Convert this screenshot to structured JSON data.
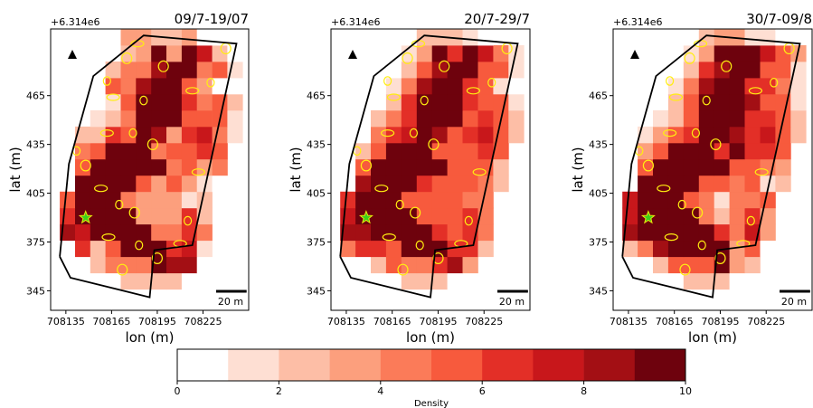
{
  "chart_data": [
    {
      "type": "heatmap",
      "title": "09/7-19/07",
      "xlabel": "lon (m)",
      "ylabel": "lat (m)",
      "offset_label": "+6.314e6",
      "xlim": [
        708125,
        708255
      ],
      "ylim": [
        333,
        506
      ],
      "xticks": [
        "708135",
        "708165",
        "708195",
        "708225"
      ],
      "xtick_values": [
        708135,
        708165,
        708195,
        708225
      ],
      "yticks": [
        "345",
        "375",
        "405",
        "435",
        "465"
      ],
      "ytick_values": [
        345,
        375,
        405,
        435,
        465
      ],
      "grid": false,
      "cell_size_m": 10,
      "scale_bar_label": "20 m",
      "marker": {
        "type": "star",
        "x": 708148,
        "y": 390
      },
      "boundary": [
        [
          708131,
          366
        ],
        [
          708138,
          353
        ],
        [
          708190,
          341
        ],
        [
          708193,
          370
        ],
        [
          708218,
          373
        ],
        [
          708247,
          497
        ],
        [
          708186,
          502
        ],
        [
          708153,
          477
        ],
        [
          708137,
          423
        ],
        [
          708131,
          366
        ]
      ],
      "contours": [
        [
          708142,
          431
        ],
        [
          708148,
          422
        ],
        [
          708162,
          442
        ],
        [
          708179,
          442
        ],
        [
          708192,
          435
        ],
        [
          708158,
          408
        ],
        [
          708170,
          398
        ],
        [
          708180,
          393
        ],
        [
          708163,
          378
        ],
        [
          708183,
          373
        ],
        [
          708195,
          365
        ],
        [
          708210,
          374
        ],
        [
          708215,
          388
        ],
        [
          708172,
          358
        ],
        [
          708166,
          464
        ],
        [
          708162,
          474
        ],
        [
          708175,
          488
        ],
        [
          708182,
          497
        ],
        [
          708186,
          462
        ],
        [
          708199,
          483
        ],
        [
          708218,
          468
        ],
        [
          708230,
          473
        ],
        [
          708240,
          494
        ],
        [
          708222,
          418
        ]
      ],
      "grid_cells": {
        "x0": 708131,
        "y0": 346,
        "rows": [
          [
            null,
            null,
            null,
            null,
            3,
            3,
            3,
            3,
            1,
            null,
            null,
            null
          ],
          [
            null,
            null,
            3,
            5,
            5,
            5,
            10,
            9,
            9,
            1,
            null,
            null
          ],
          [
            1,
            7,
            3,
            6,
            10,
            10,
            10,
            7,
            8,
            2,
            null,
            null
          ],
          [
            9,
            8,
            10,
            10,
            10,
            10,
            5,
            5,
            7,
            5,
            null,
            null
          ],
          [
            7,
            10,
            10,
            10,
            10,
            4,
            4,
            4,
            7,
            3,
            null,
            null
          ],
          [
            6,
            10,
            10,
            10,
            5,
            4,
            4,
            4,
            2,
            3,
            null,
            null
          ],
          [
            null,
            10,
            10,
            10,
            10,
            6,
            4,
            6,
            4,
            2,
            1,
            null
          ],
          [
            null,
            6,
            10,
            10,
            10,
            10,
            10,
            5,
            6,
            4,
            5,
            null
          ],
          [
            null,
            5,
            6,
            10,
            10,
            10,
            5,
            6,
            6,
            7,
            6,
            null
          ],
          [
            null,
            3,
            3,
            7,
            6,
            10,
            9,
            4,
            7,
            8,
            5,
            2
          ],
          [
            null,
            null,
            2,
            3,
            5,
            10,
            10,
            10,
            6,
            6,
            6,
            2
          ],
          [
            null,
            null,
            null,
            2,
            6,
            10,
            10,
            10,
            7,
            5,
            6,
            3
          ],
          [
            null,
            null,
            null,
            6,
            5,
            9,
            10,
            10,
            6,
            4,
            1,
            1
          ],
          [
            null,
            null,
            null,
            3,
            5,
            5,
            9,
            10,
            10,
            5,
            6,
            2
          ],
          [
            null,
            null,
            null,
            null,
            3,
            4,
            10,
            4,
            10,
            8,
            3,
            1
          ],
          [
            null,
            null,
            null,
            null,
            4,
            4,
            3,
            3,
            4,
            1,
            1,
            null
          ]
        ]
      }
    },
    {
      "type": "heatmap",
      "title": "20/7-29/7",
      "xlabel": "lon (m)",
      "ylabel": "lat (m)",
      "offset_label": "+6.314e6",
      "xlim": [
        708125,
        708255
      ],
      "ylim": [
        333,
        506
      ],
      "xticks": [
        "708135",
        "708165",
        "708195",
        "708225"
      ],
      "xtick_values": [
        708135,
        708165,
        708195,
        708225
      ],
      "yticks": [
        "345",
        "375",
        "405",
        "435",
        "465"
      ],
      "ytick_values": [
        345,
        375,
        405,
        435,
        465
      ],
      "grid": false,
      "cell_size_m": 10,
      "scale_bar_label": "20 m",
      "marker": {
        "type": "star",
        "x": 708148,
        "y": 390
      },
      "boundary": [
        [
          708131,
          366
        ],
        [
          708138,
          353
        ],
        [
          708190,
          341
        ],
        [
          708193,
          370
        ],
        [
          708218,
          373
        ],
        [
          708247,
          497
        ],
        [
          708186,
          502
        ],
        [
          708153,
          477
        ],
        [
          708137,
          423
        ],
        [
          708131,
          366
        ]
      ],
      "contours": [
        [
          708142,
          431
        ],
        [
          708148,
          422
        ],
        [
          708162,
          442
        ],
        [
          708179,
          442
        ],
        [
          708192,
          435
        ],
        [
          708158,
          408
        ],
        [
          708170,
          398
        ],
        [
          708180,
          393
        ],
        [
          708163,
          378
        ],
        [
          708183,
          373
        ],
        [
          708195,
          365
        ],
        [
          708210,
          374
        ],
        [
          708215,
          388
        ],
        [
          708172,
          358
        ],
        [
          708166,
          464
        ],
        [
          708162,
          474
        ],
        [
          708175,
          488
        ],
        [
          708182,
          497
        ],
        [
          708186,
          462
        ],
        [
          708199,
          483
        ],
        [
          708218,
          468
        ],
        [
          708230,
          473
        ],
        [
          708240,
          494
        ],
        [
          708222,
          418
        ]
      ],
      "grid_cells": {
        "x0": 708131,
        "y0": 346,
        "rows": [
          [
            null,
            null,
            null,
            null,
            3,
            3,
            3,
            1,
            null,
            null,
            null,
            null
          ],
          [
            null,
            null,
            3,
            6,
            5,
            5,
            7,
            9,
            4,
            null,
            null,
            null
          ],
          [
            5,
            7,
            7,
            6,
            10,
            10,
            10,
            7,
            7,
            3,
            null,
            null
          ],
          [
            9,
            9,
            10,
            10,
            10,
            10,
            7,
            6,
            7,
            5,
            null,
            null
          ],
          [
            8,
            10,
            10,
            10,
            10,
            6,
            6,
            6,
            7,
            5,
            null,
            null
          ],
          [
            7,
            10,
            10,
            10,
            6,
            6,
            6,
            6,
            5,
            5,
            null,
            null
          ],
          [
            null,
            9,
            10,
            10,
            10,
            7,
            6,
            6,
            6,
            5,
            3,
            null
          ],
          [
            null,
            6,
            10,
            10,
            10,
            10,
            10,
            6,
            6,
            6,
            3,
            null
          ],
          [
            null,
            3,
            6,
            10,
            10,
            10,
            6,
            6,
            6,
            7,
            6,
            null
          ],
          [
            null,
            1,
            5,
            7,
            8,
            10,
            9,
            6,
            7,
            8,
            6,
            3
          ],
          [
            null,
            null,
            3,
            5,
            7,
            10,
            10,
            10,
            6,
            7,
            6,
            3
          ],
          [
            null,
            null,
            null,
            3,
            7,
            10,
            10,
            10,
            7,
            6,
            6,
            2
          ],
          [
            null,
            null,
            null,
            2,
            5,
            9,
            10,
            10,
            7,
            6,
            2,
            1
          ],
          [
            null,
            null,
            null,
            1,
            3,
            6,
            9,
            10,
            10,
            6,
            6,
            2
          ],
          [
            null,
            null,
            null,
            null,
            2,
            4,
            10,
            7,
            10,
            8,
            5,
            2
          ],
          [
            null,
            null,
            null,
            null,
            1,
            3,
            3,
            3,
            2,
            1,
            null,
            null
          ]
        ]
      }
    },
    {
      "type": "heatmap",
      "title": "30/7-09/8",
      "xlabel": "lon (m)",
      "ylabel": "lat (m)",
      "offset_label": "+6.314e6",
      "xlim": [
        708125,
        708255
      ],
      "ylim": [
        333,
        506
      ],
      "xticks": [
        "708135",
        "708165",
        "708195",
        "708225"
      ],
      "xtick_values": [
        708135,
        708165,
        708195,
        708225
      ],
      "yticks": [
        "345",
        "375",
        "405",
        "435",
        "465"
      ],
      "ytick_values": [
        345,
        375,
        405,
        435,
        465
      ],
      "grid": false,
      "cell_size_m": 10,
      "scale_bar_label": "20 m",
      "marker": {
        "type": "star",
        "x": 708148,
        "y": 390
      },
      "boundary": [
        [
          708131,
          366
        ],
        [
          708138,
          353
        ],
        [
          708190,
          341
        ],
        [
          708193,
          370
        ],
        [
          708218,
          373
        ],
        [
          708247,
          497
        ],
        [
          708186,
          502
        ],
        [
          708153,
          477
        ],
        [
          708137,
          423
        ],
        [
          708131,
          366
        ]
      ],
      "contours": [
        [
          708142,
          431
        ],
        [
          708148,
          422
        ],
        [
          708162,
          442
        ],
        [
          708179,
          442
        ],
        [
          708192,
          435
        ],
        [
          708158,
          408
        ],
        [
          708170,
          398
        ],
        [
          708180,
          393
        ],
        [
          708163,
          378
        ],
        [
          708183,
          373
        ],
        [
          708195,
          365
        ],
        [
          708210,
          374
        ],
        [
          708215,
          388
        ],
        [
          708172,
          358
        ],
        [
          708166,
          464
        ],
        [
          708162,
          474
        ],
        [
          708175,
          488
        ],
        [
          708182,
          497
        ],
        [
          708186,
          462
        ],
        [
          708199,
          483
        ],
        [
          708218,
          468
        ],
        [
          708230,
          473
        ],
        [
          708240,
          494
        ],
        [
          708222,
          418
        ]
      ],
      "grid_cells": {
        "x0": 708131,
        "y0": 346,
        "rows": [
          [
            null,
            null,
            null,
            null,
            3,
            3,
            3,
            1,
            null,
            null,
            null,
            null
          ],
          [
            null,
            null,
            3,
            6,
            6,
            6,
            10,
            4,
            3,
            null,
            null,
            null
          ],
          [
            3,
            5,
            9,
            10,
            10,
            10,
            10,
            4,
            6,
            1,
            null,
            null
          ],
          [
            9,
            10,
            10,
            10,
            10,
            10,
            7,
            5,
            8,
            4,
            null,
            null
          ],
          [
            8,
            10,
            10,
            10,
            10,
            5,
            3,
            5,
            7,
            4,
            null,
            null
          ],
          [
            8,
            10,
            10,
            10,
            6,
            5,
            2,
            5,
            5,
            6,
            null,
            null
          ],
          [
            null,
            10,
            10,
            10,
            10,
            6,
            6,
            5,
            6,
            2,
            3,
            null
          ],
          [
            null,
            6,
            10,
            10,
            10,
            10,
            10,
            6,
            6,
            5,
            4,
            null
          ],
          [
            null,
            4,
            6,
            10,
            10,
            10,
            7,
            10,
            7,
            7,
            6,
            null
          ],
          [
            null,
            2,
            4,
            6,
            7,
            10,
            10,
            9,
            7,
            8,
            6,
            3
          ],
          [
            null,
            null,
            2,
            3,
            6,
            10,
            10,
            10,
            7,
            7,
            6,
            3
          ],
          [
            null,
            null,
            null,
            3,
            6,
            10,
            10,
            10,
            9,
            6,
            6,
            2
          ],
          [
            null,
            null,
            null,
            2,
            5,
            9,
            10,
            10,
            7,
            7,
            5,
            2
          ],
          [
            null,
            null,
            null,
            1,
            3,
            7,
            9,
            10,
            10,
            6,
            6,
            2
          ],
          [
            null,
            null,
            null,
            null,
            2,
            4,
            10,
            10,
            10,
            8,
            6,
            4
          ],
          [
            null,
            null,
            null,
            null,
            1,
            3,
            4,
            4,
            2,
            2,
            1,
            null
          ]
        ]
      }
    }
  ],
  "colorbar": {
    "label": "Density",
    "min": 0,
    "max": 10,
    "ticks": [
      "0",
      "2",
      "4",
      "6",
      "8",
      "10"
    ],
    "tick_values": [
      0,
      2,
      4,
      6,
      8,
      10
    ],
    "colors": [
      "#ffffff",
      "#fedfd3",
      "#fdbea6",
      "#fc9f7d",
      "#fb7b59",
      "#f75a3d",
      "#e32f27",
      "#c8171b",
      "#a30f14",
      "#6e020d"
    ]
  },
  "styles": {
    "boundary_color": "#000000",
    "contour_color": "#ffee10",
    "marker_fill": "#3cd11a",
    "marker_edge": "#e9e60c",
    "north_arrow_color": "#000000"
  }
}
